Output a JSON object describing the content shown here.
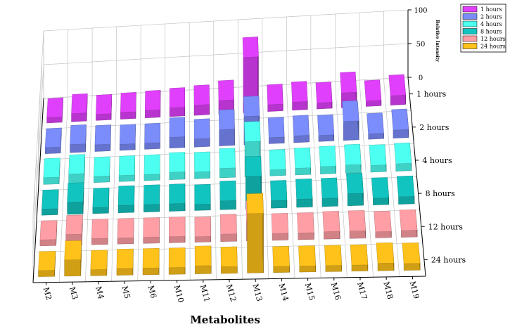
{
  "chart_data": {
    "type": "bar",
    "subtype": "3d-bar",
    "title": "",
    "xlabel": "Metabolites",
    "ylabel": "",
    "zlabel": "Relative Intensity",
    "zlim": [
      0,
      100
    ],
    "z_ticks": [
      0,
      50,
      100
    ],
    "grid": true,
    "legend_position": "top-right",
    "categories": [
      "M2",
      "M3",
      "M4",
      "M5",
      "M6",
      "M10",
      "M11",
      "M12",
      "M13",
      "M14",
      "M15",
      "M16",
      "M17",
      "M18",
      "M19"
    ],
    "series": [
      {
        "name": "1 hours",
        "color": "#e040fb",
        "values": [
          8,
          12,
          9,
          10,
          11,
          13,
          15,
          20,
          82,
          10,
          12,
          9,
          22,
          8,
          14
        ]
      },
      {
        "name": "2 hours",
        "color": "#7b8cfb",
        "values": [
          9,
          12,
          10,
          9,
          9,
          16,
          12,
          24,
          42,
          9,
          10,
          9,
          28,
          8,
          12
        ]
      },
      {
        "name": "4 hours",
        "color": "#4dfff0",
        "values": [
          10,
          14,
          9,
          9,
          9,
          11,
          10,
          14,
          52,
          9,
          10,
          11,
          12,
          10,
          11
        ]
      },
      {
        "name": "8 hours",
        "color": "#12c4c0",
        "values": [
          9,
          18,
          9,
          11,
          11,
          11,
          9,
          13,
          48,
          11,
          12,
          12,
          18,
          10,
          11
        ]
      },
      {
        "name": "12 hours",
        "color": "#ff9ea4",
        "values": [
          9,
          16,
          9,
          9,
          9,
          9,
          8,
          11,
          30,
          10,
          10,
          11,
          11,
          9,
          10
        ]
      },
      {
        "name": "24 hours",
        "color": "#ffc21a",
        "values": [
          9,
          24,
          9,
          10,
          10,
          10,
          12,
          10,
          88,
          9,
          9,
          9,
          9,
          11,
          10
        ]
      }
    ]
  }
}
